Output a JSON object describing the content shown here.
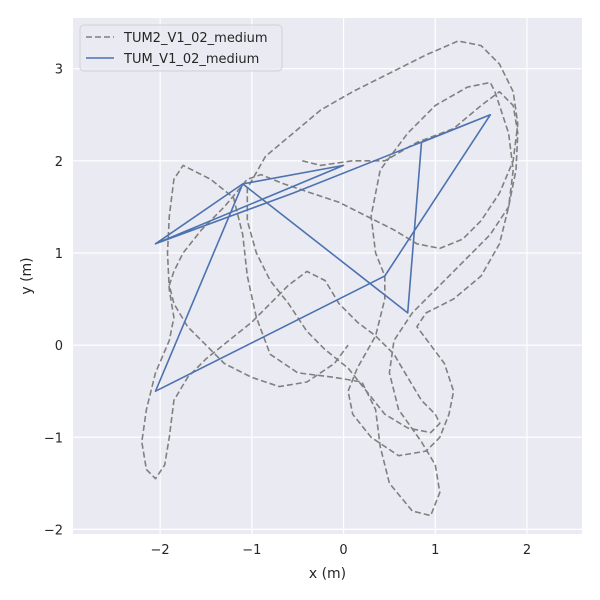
{
  "chart_data": {
    "type": "line",
    "xlabel": "x (m)",
    "ylabel": "y (m)",
    "xlim": [
      -2.95,
      2.6
    ],
    "ylim": [
      -2.05,
      3.55
    ],
    "xticks": [
      -2,
      -1,
      0,
      1,
      2
    ],
    "yticks": [
      -2,
      -1,
      0,
      1,
      2,
      3
    ],
    "xtick_labels": [
      "−2",
      "−1",
      "0",
      "1",
      "2"
    ],
    "ytick_labels": [
      "−2",
      "−1",
      "0",
      "1",
      "2",
      "3"
    ],
    "grid": true,
    "legend_position": "top-left",
    "series": [
      {
        "name": "TUM2_V1_02_medium",
        "color": "#808080",
        "style": "dashed",
        "points": [
          [
            -0.45,
            2.0
          ],
          [
            -0.25,
            1.95
          ],
          [
            0.1,
            2.0
          ],
          [
            0.45,
            2.0
          ],
          [
            0.8,
            2.2
          ],
          [
            1.2,
            2.35
          ],
          [
            1.5,
            2.6
          ],
          [
            1.7,
            2.75
          ],
          [
            1.85,
            2.6
          ],
          [
            1.9,
            2.3
          ],
          [
            1.88,
            1.9
          ],
          [
            1.8,
            1.5
          ],
          [
            1.7,
            1.1
          ],
          [
            1.5,
            0.75
          ],
          [
            1.2,
            0.5
          ],
          [
            0.9,
            0.35
          ],
          [
            0.8,
            0.2
          ],
          [
            0.95,
            0.0
          ],
          [
            1.1,
            -0.2
          ],
          [
            1.2,
            -0.5
          ],
          [
            1.15,
            -0.75
          ],
          [
            1.05,
            -1.0
          ],
          [
            0.9,
            -1.15
          ],
          [
            0.6,
            -1.2
          ],
          [
            0.3,
            -1.0
          ],
          [
            0.1,
            -0.75
          ],
          [
            0.05,
            -0.5
          ],
          [
            0.15,
            -0.25
          ],
          [
            0.35,
            0.1
          ],
          [
            0.45,
            0.5
          ],
          [
            0.45,
            0.75
          ],
          [
            0.35,
            1.0
          ],
          [
            0.3,
            1.4
          ],
          [
            0.4,
            1.9
          ],
          [
            0.7,
            2.3
          ],
          [
            1.0,
            2.6
          ],
          [
            1.35,
            2.8
          ],
          [
            1.6,
            2.85
          ],
          [
            1.65,
            2.75
          ],
          [
            1.7,
            2.6
          ],
          [
            1.8,
            2.3
          ],
          [
            1.85,
            1.9
          ],
          [
            1.8,
            1.5
          ],
          [
            1.6,
            1.2
          ],
          [
            1.3,
            0.9
          ],
          [
            1.0,
            0.6
          ],
          [
            0.75,
            0.35
          ],
          [
            0.55,
            0.05
          ],
          [
            0.5,
            -0.3
          ],
          [
            0.6,
            -0.7
          ],
          [
            0.85,
            -1.05
          ],
          [
            1.0,
            -1.3
          ],
          [
            1.05,
            -1.6
          ],
          [
            0.95,
            -1.85
          ],
          [
            0.75,
            -1.8
          ],
          [
            0.5,
            -1.5
          ],
          [
            0.4,
            -1.1
          ],
          [
            0.35,
            -0.7
          ],
          [
            0.2,
            -0.4
          ],
          [
            -0.1,
            -0.35
          ],
          [
            -0.5,
            -0.3
          ],
          [
            -0.8,
            -0.1
          ],
          [
            -0.95,
            0.3
          ],
          [
            -1.05,
            0.75
          ],
          [
            -1.1,
            1.2
          ],
          [
            -1.2,
            1.6
          ],
          [
            -1.45,
            1.8
          ],
          [
            -1.75,
            1.95
          ],
          [
            -1.85,
            1.8
          ],
          [
            -1.9,
            1.4
          ],
          [
            -1.92,
            1.0
          ],
          [
            -1.9,
            0.6
          ],
          [
            -1.85,
            0.3
          ],
          [
            -1.9,
            0.05
          ],
          [
            -2.05,
            -0.3
          ],
          [
            -2.15,
            -0.7
          ],
          [
            -2.2,
            -1.05
          ],
          [
            -2.15,
            -1.35
          ],
          [
            -2.05,
            -1.45
          ],
          [
            -1.95,
            -1.3
          ],
          [
            -1.9,
            -1.0
          ],
          [
            -1.85,
            -0.6
          ],
          [
            -1.7,
            -0.35
          ],
          [
            -1.5,
            -0.15
          ],
          [
            -1.25,
            0.05
          ],
          [
            -1.0,
            0.25
          ],
          [
            -0.8,
            0.45
          ],
          [
            -0.6,
            0.65
          ],
          [
            -0.4,
            0.8
          ],
          [
            -0.2,
            0.7
          ],
          [
            -0.05,
            0.45
          ],
          [
            0.15,
            0.25
          ],
          [
            0.35,
            0.1
          ],
          [
            0.55,
            -0.1
          ],
          [
            0.7,
            -0.35
          ],
          [
            0.85,
            -0.6
          ],
          [
            1.0,
            -0.75
          ],
          [
            1.05,
            -0.85
          ],
          [
            0.95,
            -0.95
          ],
          [
            0.7,
            -0.9
          ],
          [
            0.45,
            -0.75
          ],
          [
            0.25,
            -0.5
          ],
          [
            0.05,
            -0.25
          ],
          [
            -0.2,
            -0.05
          ],
          [
            -0.4,
            0.15
          ],
          [
            -0.6,
            0.45
          ],
          [
            -0.8,
            0.7
          ],
          [
            -0.95,
            1.0
          ],
          [
            -1.05,
            1.35
          ],
          [
            -1.05,
            1.7
          ],
          [
            -0.85,
            2.05
          ],
          [
            -0.55,
            2.3
          ],
          [
            -0.25,
            2.55
          ],
          [
            0.1,
            2.75
          ],
          [
            0.5,
            2.95
          ],
          [
            0.9,
            3.15
          ],
          [
            1.25,
            3.3
          ],
          [
            1.5,
            3.25
          ],
          [
            1.7,
            3.05
          ],
          [
            1.85,
            2.75
          ],
          [
            1.9,
            2.4
          ],
          [
            1.85,
            2.0
          ],
          [
            1.7,
            1.65
          ],
          [
            1.5,
            1.35
          ],
          [
            1.3,
            1.15
          ],
          [
            1.05,
            1.05
          ],
          [
            0.8,
            1.1
          ],
          [
            0.55,
            1.25
          ],
          [
            0.25,
            1.4
          ],
          [
            -0.05,
            1.55
          ],
          [
            -0.35,
            1.65
          ],
          [
            -0.65,
            1.75
          ],
          [
            -0.9,
            1.85
          ],
          [
            -1.05,
            1.8
          ],
          [
            -1.3,
            1.5
          ],
          [
            -1.55,
            1.25
          ],
          [
            -1.75,
            1.0
          ],
          [
            -1.85,
            0.8
          ],
          [
            -1.9,
            0.65
          ],
          [
            -1.85,
            0.45
          ],
          [
            -1.7,
            0.2
          ],
          [
            -1.5,
            0.0
          ],
          [
            -1.3,
            -0.2
          ],
          [
            -1.0,
            -0.35
          ],
          [
            -0.7,
            -0.45
          ],
          [
            -0.4,
            -0.4
          ],
          [
            -0.1,
            -0.2
          ],
          [
            0.05,
            0.0
          ]
        ]
      },
      {
        "name": "TUM_V1_02_medium",
        "color": "#4c72b0",
        "style": "solid",
        "points": [
          [
            -2.05,
            1.1
          ],
          [
            0.0,
            1.95
          ],
          [
            -1.1,
            1.75
          ],
          [
            0.7,
            0.35
          ],
          [
            0.85,
            2.2
          ],
          [
            1.6,
            2.5
          ],
          [
            0.45,
            0.75
          ],
          [
            -2.05,
            -0.5
          ],
          [
            -1.1,
            1.75
          ],
          [
            -2.05,
            1.1
          ],
          [
            -0.55,
            1.65
          ],
          [
            1.6,
            2.5
          ]
        ]
      }
    ]
  }
}
